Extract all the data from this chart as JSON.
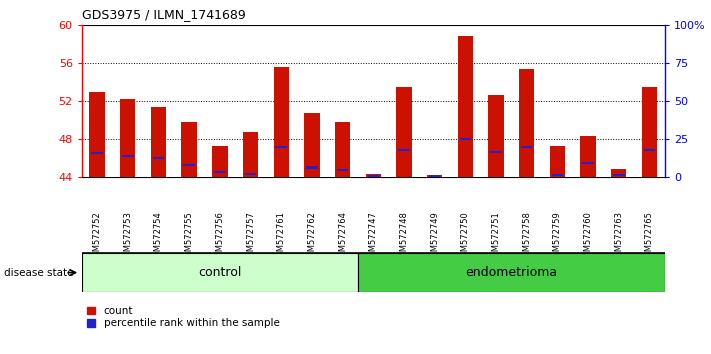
{
  "title": "GDS3975 / ILMN_1741689",
  "samples": [
    "GSM572752",
    "GSM572753",
    "GSM572754",
    "GSM572755",
    "GSM572756",
    "GSM572757",
    "GSM572761",
    "GSM572762",
    "GSM572764",
    "GSM572747",
    "GSM572748",
    "GSM572749",
    "GSM572750",
    "GSM572751",
    "GSM572758",
    "GSM572759",
    "GSM572760",
    "GSM572763",
    "GSM572765"
  ],
  "count_values": [
    52.9,
    52.2,
    51.4,
    49.8,
    47.3,
    48.7,
    55.6,
    50.7,
    49.8,
    44.3,
    53.5,
    44.2,
    58.8,
    52.6,
    55.4,
    47.3,
    48.3,
    44.8,
    53.5
  ],
  "percentile_values": [
    46.5,
    46.2,
    46.0,
    45.3,
    44.5,
    44.3,
    47.2,
    45.0,
    44.7,
    44.1,
    46.8,
    44.1,
    48.0,
    46.6,
    47.2,
    44.2,
    45.5,
    44.2,
    46.8
  ],
  "group_labels": [
    "control",
    "endometrioma"
  ],
  "group_counts": [
    9,
    10
  ],
  "ymin": 44,
  "ymax": 60,
  "yticks_left": [
    44,
    48,
    52,
    56,
    60
  ],
  "bar_color": "#cc1100",
  "percentile_color": "#2222cc",
  "gray_bg": "#d0d0d0",
  "control_color": "#ccffcc",
  "endometrioma_color": "#44cc44",
  "bar_width": 0.5
}
